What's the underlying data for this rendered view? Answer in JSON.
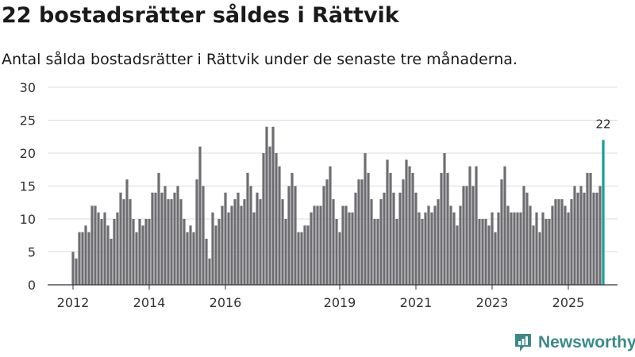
{
  "header": {
    "title": "22 bostadsrätter såldes i Rättvik",
    "subtitle": "Antal sålda bostadsrätter i Rättvik under de senaste tre månaderna."
  },
  "brand": {
    "name": "Newsworthy",
    "color": "#3a8a8a"
  },
  "colors": {
    "bar": "#6e6d72",
    "highlight": "#1a9e98",
    "grid": "#dcdcdc",
    "axis": "#333333"
  },
  "chart_data": {
    "type": "bar",
    "x_start": "2012-01",
    "ylim": [
      0,
      30
    ],
    "yticks": [
      0,
      5,
      10,
      15,
      20,
      25,
      30
    ],
    "xticks": [
      "2012",
      "2014",
      "2016",
      "2019",
      "2021",
      "2023",
      "2025"
    ],
    "highlight_label": "22",
    "values": [
      5,
      4,
      8,
      8,
      9,
      8,
      12,
      12,
      11,
      10,
      11,
      9,
      7,
      10,
      11,
      14,
      13,
      16,
      13,
      10,
      8,
      10,
      9,
      10,
      10,
      14,
      14,
      17,
      14,
      15,
      13,
      13,
      14,
      15,
      13,
      10,
      8,
      9,
      8,
      16,
      21,
      15,
      7,
      4,
      11,
      9,
      10,
      12,
      14,
      11,
      12,
      13,
      14,
      12,
      13,
      17,
      15,
      11,
      14,
      13,
      20,
      24,
      21,
      24,
      20,
      18,
      13,
      10,
      15,
      17,
      15,
      8,
      8,
      9,
      9,
      11,
      12,
      12,
      12,
      15,
      16,
      18,
      13,
      10,
      8,
      12,
      12,
      11,
      11,
      14,
      16,
      16,
      20,
      17,
      13,
      10,
      10,
      13,
      14,
      19,
      17,
      14,
      10,
      14,
      16,
      19,
      18,
      17,
      14,
      11,
      10,
      11,
      12,
      11,
      12,
      13,
      17,
      20,
      17,
      12,
      11,
      9,
      12,
      15,
      15,
      18,
      15,
      18,
      10,
      10,
      10,
      9,
      11,
      8,
      11,
      16,
      18,
      12,
      11,
      11,
      11,
      11,
      15,
      14,
      12,
      9,
      11,
      8,
      11,
      10,
      10,
      12,
      13,
      13,
      13,
      12,
      11,
      13,
      15,
      14,
      15,
      14,
      17,
      17,
      14,
      14,
      15,
      22
    ]
  }
}
